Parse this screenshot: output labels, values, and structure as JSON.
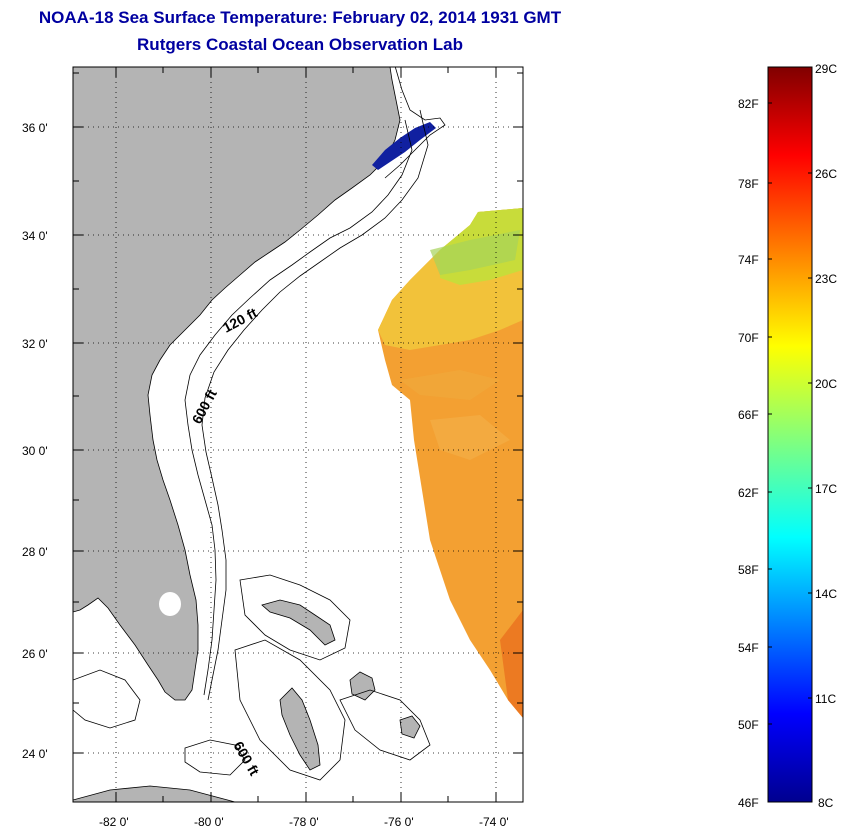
{
  "header": {
    "title": "NOAA-18 Sea Surface Temperature:  February 02, 2014 1931 GMT",
    "subtitle": "Rutgers Coastal Ocean Observation Lab"
  },
  "map": {
    "lat_labels": [
      "36 0'",
      "34 0'",
      "32 0'",
      "30 0'",
      "28 0'",
      "26 0'",
      "24 0'"
    ],
    "lon_labels": [
      "-82 0'",
      "-80 0'",
      "-78 0'",
      "-76 0'",
      "-74 0'"
    ],
    "contour_labels": [
      "120 ft",
      "600 ft",
      "600 ft"
    ],
    "colors": {
      "land": "#b4b4b4",
      "ocean": "#ffffff"
    }
  },
  "colorbar": {
    "fahrenheit_labels": [
      "82F",
      "78F",
      "74F",
      "70F",
      "66F",
      "62F",
      "58F",
      "54F",
      "50F",
      "46F"
    ],
    "celsius_labels": [
      "29C",
      "26C",
      "23C",
      "20C",
      "17C",
      "14C",
      "11C",
      "8C"
    ]
  }
}
